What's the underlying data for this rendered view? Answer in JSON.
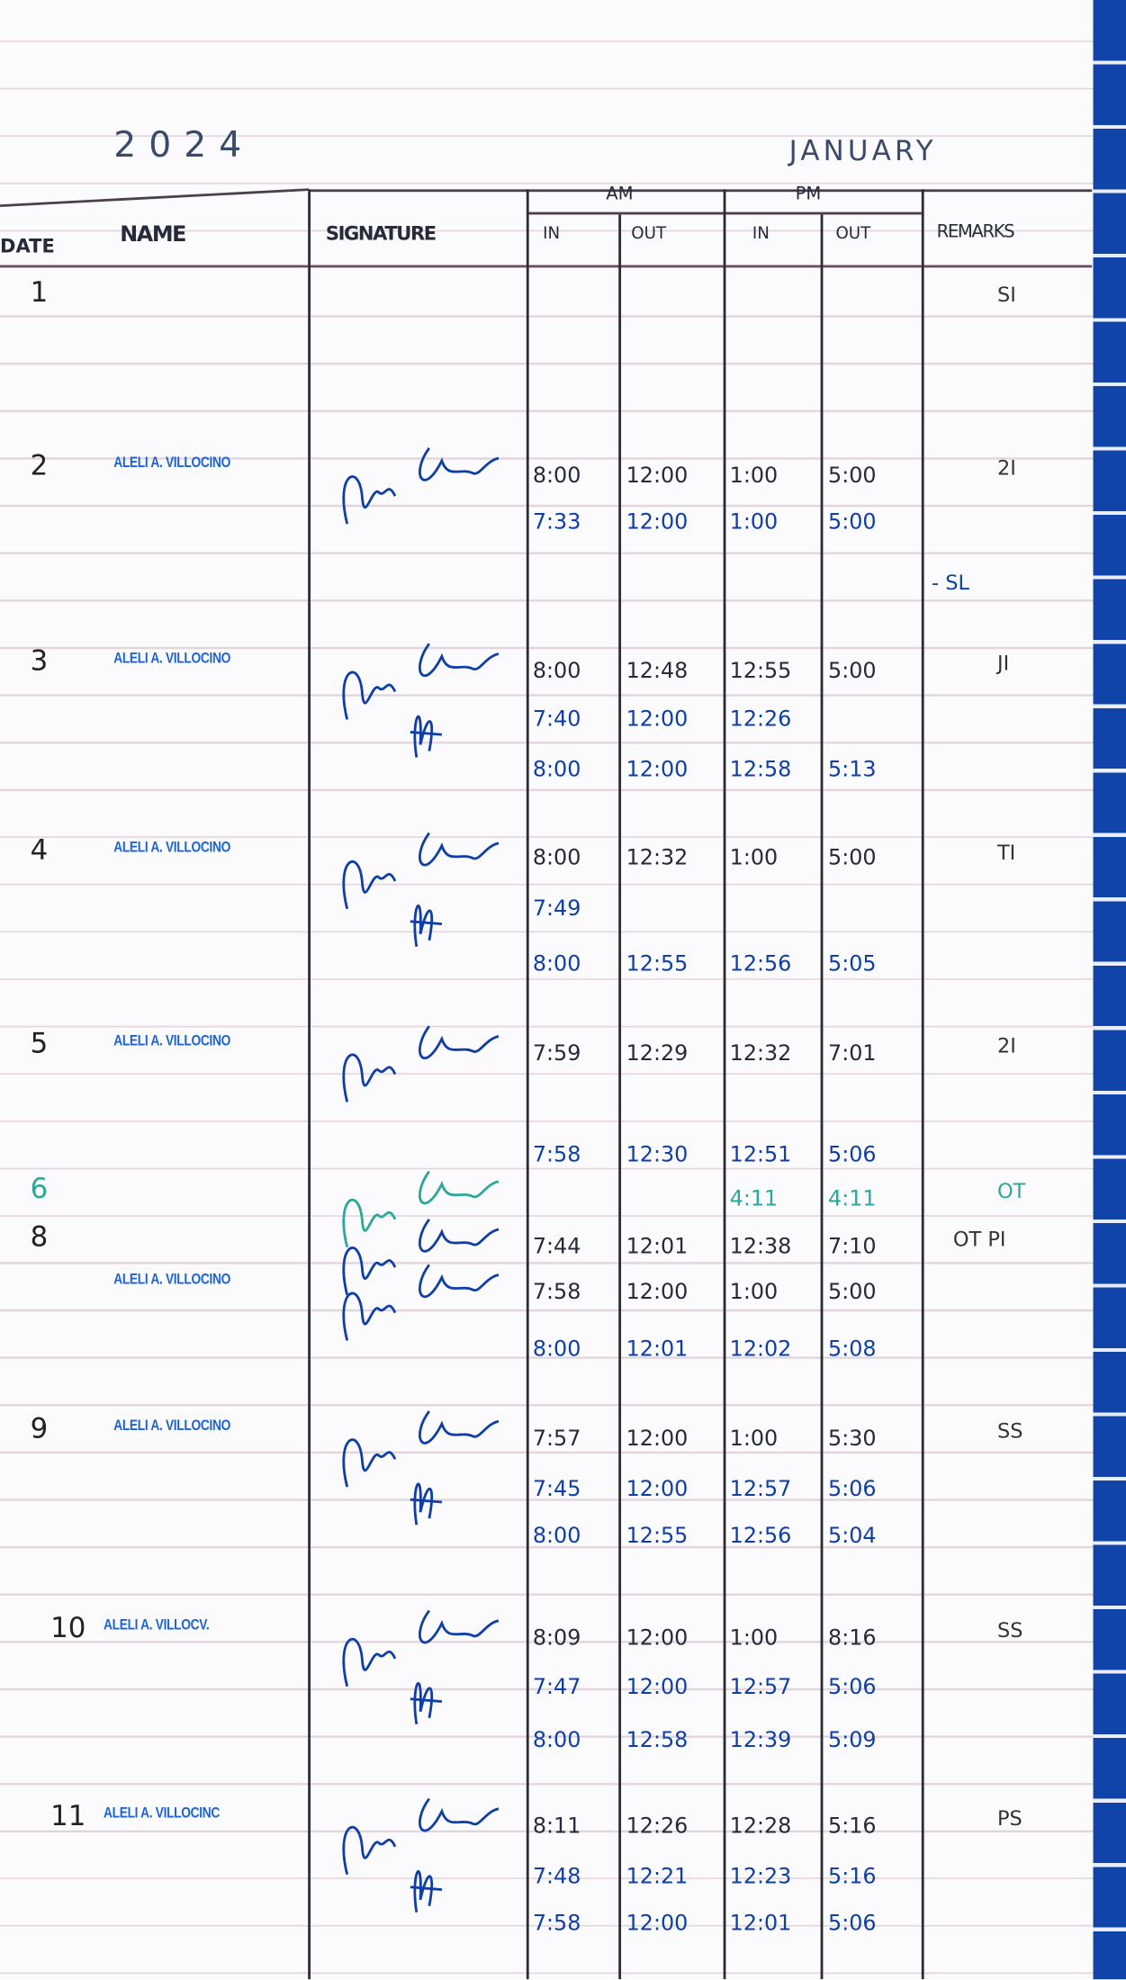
{
  "header": {
    "year": "2024",
    "month": "JANUARY",
    "col_date": "DATE",
    "col_name": "NAME",
    "col_signature": "SIGNATURE",
    "group_am": "AM",
    "group_pm": "PM",
    "col_am_in": "IN",
    "col_am_out": "OUT",
    "col_pm_in": "IN",
    "col_pm_out": "OUT",
    "col_remarks": "REMARKS"
  },
  "ink_colors": {
    "black": "#262a3a",
    "blue": "#0f3fa6",
    "teal": "#2aa89a",
    "stamp": "#1c63d6"
  },
  "entries": [
    {
      "date": "1",
      "name": "",
      "remark": "SI",
      "rows": []
    },
    {
      "date": "2",
      "name": "ALELI A. VILLOCINO",
      "remark": "2I",
      "extra_remark": "- SL",
      "rows": [
        [
          "8:00",
          "12:00",
          "1:00",
          "5:00"
        ],
        [
          "7:33",
          "12:00",
          "1:00",
          "5:00"
        ]
      ]
    },
    {
      "date": "3",
      "name": "ALELI A. VILLOCINO",
      "remark": "JI",
      "rows": [
        [
          "8:00",
          "12:48",
          "12:55",
          "5:00"
        ],
        [
          "7:40",
          "12:00",
          "12:26",
          ""
        ],
        [
          "8:00",
          "12:00",
          "12:58",
          "5:13"
        ]
      ]
    },
    {
      "date": "4",
      "name": "ALELI A. VILLOCINO",
      "remark": "TI",
      "rows": [
        [
          "8:00",
          "12:32",
          "1:00",
          "5:00"
        ],
        [
          "7:49",
          "",
          "",
          ""
        ],
        [
          "8:00",
          "12:55",
          "12:56",
          "5:05"
        ]
      ]
    },
    {
      "date": "5",
      "name": "ALELI A. VILLOCINO",
      "remark": "2I",
      "rows": [
        [
          "7:59",
          "12:29",
          "12:32",
          "7:01"
        ],
        [
          "7:58",
          "12:30",
          "12:51",
          "5:06"
        ]
      ]
    },
    {
      "date": "6",
      "name": "",
      "remark": "OT",
      "ink": "teal",
      "rows": [
        [
          "",
          "",
          "4:11",
          "4:11"
        ]
      ]
    },
    {
      "date": "8",
      "name": "",
      "remark": "OT PI",
      "rows": [
        [
          "7:44",
          "12:01",
          "12:38",
          "7:10"
        ]
      ]
    },
    {
      "date": "",
      "name": "ALELI A. VILLOCINO",
      "remark": "",
      "rows": [
        [
          "7:58",
          "12:00",
          "1:00",
          "5:00"
        ],
        [
          "8:00",
          "12:01",
          "12:02",
          "5:08"
        ]
      ]
    },
    {
      "date": "9",
      "name": "ALELI A. VILLOCINO",
      "remark": "SS",
      "rows": [
        [
          "7:57",
          "12:00",
          "1:00",
          "5:30"
        ],
        [
          "7:45",
          "12:00",
          "12:57",
          "5:06"
        ],
        [
          "8:00",
          "12:55",
          "12:56",
          "5:04"
        ]
      ]
    },
    {
      "date": "10",
      "name": "ALELI A. VILLOCV.",
      "remark": "SS",
      "rows": [
        [
          "8:09",
          "12:00",
          "1:00",
          "8:16"
        ],
        [
          "7:47",
          "12:00",
          "12:57",
          "5:06"
        ],
        [
          "8:00",
          "12:58",
          "12:39",
          "5:09"
        ]
      ]
    },
    {
      "date": "11",
      "name": "ALELI A. VILLOCINC",
      "remark": "PS",
      "rows": [
        [
          "8:11",
          "12:26",
          "12:28",
          "5:16"
        ],
        [
          "7:48",
          "12:21",
          "12:23",
          "5:16"
        ],
        [
          "7:58",
          "12:00",
          "12:01",
          "5:06"
        ]
      ]
    }
  ]
}
